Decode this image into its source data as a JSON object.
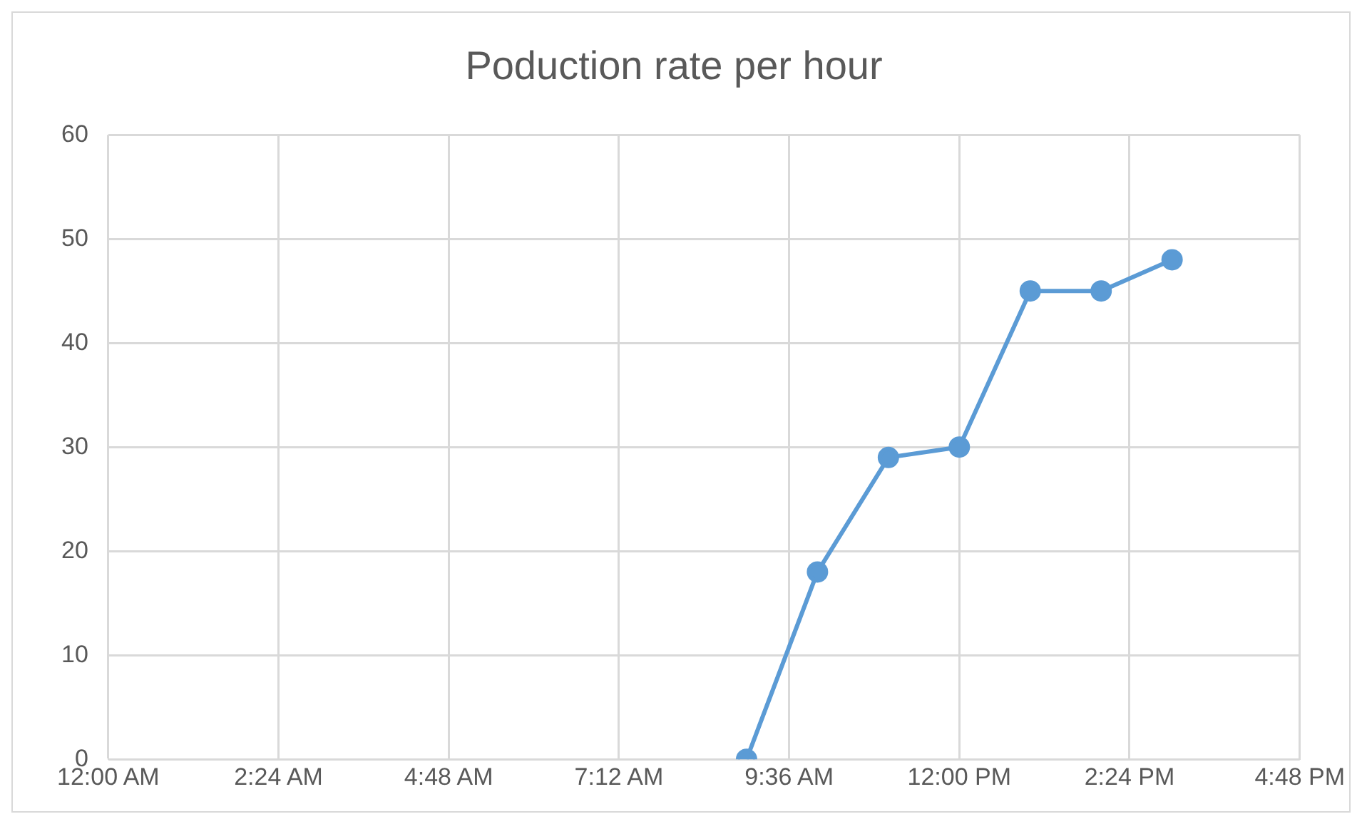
{
  "chart_data": {
    "type": "line",
    "title": "Poduction rate per hour",
    "x": [
      9,
      10,
      11,
      12,
      13,
      14,
      15
    ],
    "series": [
      {
        "color": "#5b9bd5",
        "values": [
          0,
          18,
          29,
          30,
          45,
          45,
          48
        ]
      }
    ],
    "xlim": [
      0,
      16.8
    ],
    "xticks": [
      {
        "value": 0,
        "label": "12:00 AM"
      },
      {
        "value": 2.4,
        "label": "2:24 AM"
      },
      {
        "value": 4.8,
        "label": "4:48 AM"
      },
      {
        "value": 7.2,
        "label": "7:12 AM"
      },
      {
        "value": 9.6,
        "label": "9:36 AM"
      },
      {
        "value": 12,
        "label": "12:00 PM"
      },
      {
        "value": 14.4,
        "label": "2:24 PM"
      },
      {
        "value": 16.8,
        "label": "4:48 PM"
      }
    ],
    "ylim": [
      0,
      60
    ],
    "yticks": [
      0,
      10,
      20,
      30,
      40,
      50,
      60
    ],
    "grid": true,
    "legend": false,
    "marker": "circle",
    "line_style": "solid"
  }
}
